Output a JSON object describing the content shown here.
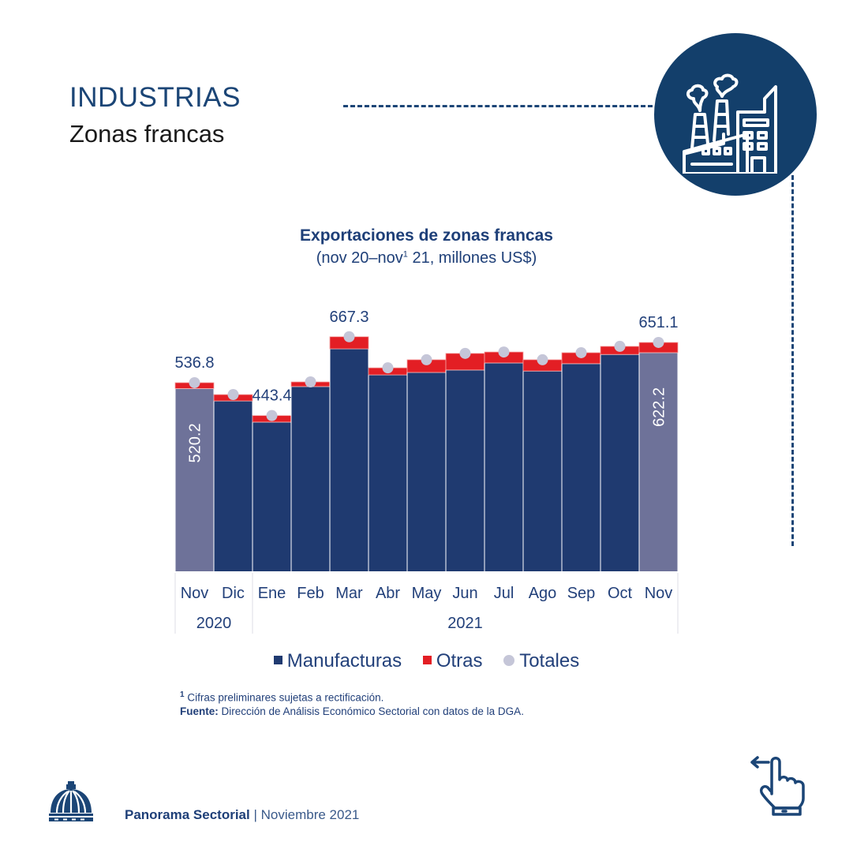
{
  "header": {
    "section_title": "INDUSTRIAS",
    "section_subtitle": "Zonas francas",
    "badge_icon": "factory-icon"
  },
  "chart_data": {
    "type": "bar",
    "stacked": true,
    "title": "Exportaciones de zonas francas",
    "subtitle_pre": "(nov 20–nov",
    "subtitle_sup": "1",
    "subtitle_post": " 21, millones US$)",
    "categories": [
      "Nov",
      "Dic",
      "Ene",
      "Feb",
      "Mar",
      "Abr",
      "May",
      "Jun",
      "Jul",
      "Ago",
      "Sep",
      "Oct",
      "Nov"
    ],
    "year_groups": [
      {
        "label": "2020",
        "span": 2
      },
      {
        "label": "2021",
        "span": 11
      }
    ],
    "series": [
      {
        "name": "Manufacturas",
        "color": "#1f3a70",
        "values": [
          520.2,
          485,
          425,
          526,
          633,
          559,
          566,
          573,
          593,
          570,
          591,
          617,
          622.2
        ]
      },
      {
        "name": "Otras",
        "color": "#e31e24",
        "values": [
          16.6,
          18,
          18.4,
          13,
          34.3,
          20,
          36,
          47,
          31,
          32,
          31,
          23,
          28.9
        ]
      }
    ],
    "totals": {
      "name": "Totales",
      "color": "#c5c6d8",
      "values": [
        536.8,
        503,
        443.4,
        539,
        667.3,
        579,
        602,
        620,
        624,
        602,
        622,
        640,
        651.1
      ]
    },
    "highlight_color": "#6e7299",
    "highlighted_indices": [
      0,
      12
    ],
    "total_labels": [
      {
        "index": 0,
        "text": "536.8"
      },
      {
        "index": 2,
        "text": "443.4"
      },
      {
        "index": 4,
        "text": "667.3"
      },
      {
        "index": 12,
        "text": "651.1"
      }
    ],
    "inner_labels": [
      {
        "index": 0,
        "text": "520.2"
      },
      {
        "index": 12,
        "text": "622.2"
      }
    ],
    "ylim": [
      0,
      700
    ],
    "grid": false,
    "legend": "bottom-center",
    "xlabel": "",
    "ylabel": ""
  },
  "legend": {
    "items": [
      {
        "label": "Manufacturas",
        "color": "#1f3a70",
        "shape": "square"
      },
      {
        "label": "Otras",
        "color": "#e31e24",
        "shape": "square"
      },
      {
        "label": "Totales",
        "color": "#c5c6d8",
        "shape": "circle"
      }
    ]
  },
  "notes": {
    "footnote_mark": "1",
    "footnote": "Cifras preliminares sujetas a rectificación.",
    "source_label": "Fuente:",
    "source_text": " Dirección de Análisis Económico Sectorial con datos de la DGA."
  },
  "footer": {
    "publication": "Panorama Sectorial",
    "separator": " | ",
    "date": "Noviembre 2021",
    "logo_icon": "dome-logo-icon",
    "nav_icon": "swipe-left-icon"
  }
}
